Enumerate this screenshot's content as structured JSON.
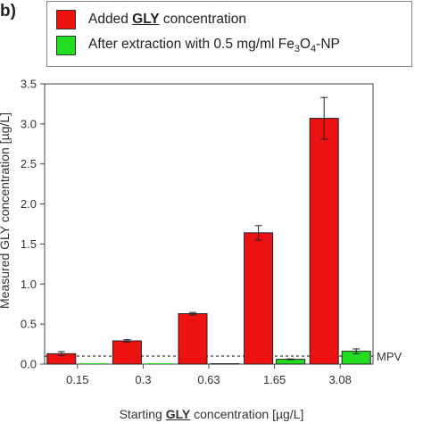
{
  "panel_label": "b)",
  "legend": {
    "added": {
      "prefix": "Added ",
      "emph": "GLY",
      "suffix": " concentration",
      "color": "#ee1111"
    },
    "extracted": {
      "text": "After extraction with 0.5 mg/ml Fe",
      "sub1": "3",
      "mid": "O",
      "sub2": "4",
      "suffix": "-NP",
      "color": "#22dd22"
    }
  },
  "y_axis_title": "Measured GLY concentration [µg/L]",
  "x_axis_title": {
    "prefix": "Starting ",
    "emph": "GLY",
    "suffix": " concentration [µg/L]"
  },
  "chart_data": {
    "type": "bar",
    "categories": [
      "0.15",
      "0.3",
      "0.63",
      "1.65",
      "3.08"
    ],
    "series": [
      {
        "name": "Added GLY concentration",
        "color": "#ee1111",
        "values": [
          0.13,
          0.29,
          0.63,
          1.64,
          3.07
        ],
        "errors": [
          0.025,
          0.015,
          0.015,
          0.09,
          0.26
        ]
      },
      {
        "name": "After extraction with 0.5 mg/ml Fe3O4-NP",
        "color": "#22dd22",
        "values": [
          0.0,
          0.0,
          0.005,
          0.06,
          0.16
        ],
        "errors": [
          0.0,
          0.0,
          0.0,
          0.005,
          0.03
        ]
      }
    ],
    "ylim": [
      0,
      3.5
    ],
    "yticks": [
      "0.0",
      "0.5",
      "1.0",
      "1.5",
      "2.0",
      "2.5",
      "3.0",
      "3.5"
    ],
    "reference_line": {
      "value": 0.1,
      "label": "MPV",
      "style": "dashed"
    },
    "grid": false
  }
}
